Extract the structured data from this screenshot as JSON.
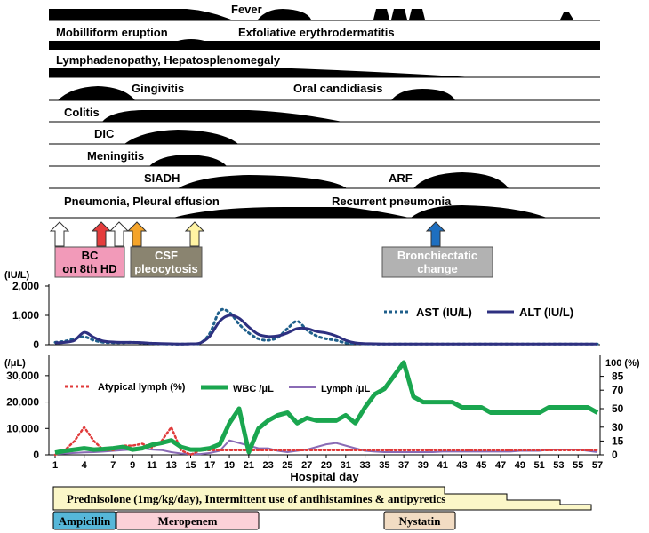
{
  "clinical_course": {
    "tracks": [
      {
        "labels": [
          "Fever"
        ]
      },
      {
        "labels": [
          "Mobilliform eruption",
          "Exfoliative erythrodermatitis"
        ]
      },
      {
        "labels": [
          "Lymphadenopathy, Hepatosplenomegaly"
        ]
      },
      {
        "labels": [
          "Gingivitis",
          "Oral candidiasis"
        ]
      },
      {
        "labels": [
          "Colitis"
        ]
      },
      {
        "labels": [
          "DIC"
        ]
      },
      {
        "labels": [
          "Meningitis"
        ]
      },
      {
        "labels": [
          "SIADH",
          "ARF"
        ]
      },
      {
        "labels": [
          "Pneumonia, Pleural effusion",
          "Recurrent pneumonia"
        ]
      }
    ],
    "events": [
      {
        "label": "BC\non 8th HD",
        "color": "#f29ab9"
      },
      {
        "label": "CSF\npleocytosis",
        "color": "#8a8470"
      },
      {
        "label": "Bronchiectatic\nchange",
        "color": "#b2b2b2"
      }
    ],
    "arrow_colors": [
      "#ffffff",
      "#e53c3c",
      "#ffffff",
      "#f5a42a",
      "#fff3a3",
      "#1e6fc0"
    ]
  },
  "chart_data": [
    {
      "type": "line",
      "ylabel": "(IU/L)",
      "ylim": [
        0,
        2000
      ],
      "yticks": [
        "0",
        "1,000",
        "2,000"
      ],
      "x": [
        1,
        2,
        3,
        4,
        5,
        6,
        7,
        8,
        9,
        10,
        11,
        12,
        13,
        14,
        15,
        16,
        17,
        18,
        19,
        20,
        21,
        22,
        23,
        24,
        25,
        26,
        27,
        28,
        29,
        30,
        31,
        32,
        33,
        34,
        35,
        36,
        37,
        38,
        39,
        40,
        41,
        42,
        43,
        44,
        45,
        46,
        47,
        48,
        49,
        50,
        51,
        52,
        53,
        54,
        55,
        56,
        57
      ],
      "series": [
        {
          "name": "AST (IU/L)",
          "color": "#1f5f8b",
          "style": "dotted",
          "values": [
            80,
            120,
            200,
            270,
            150,
            80,
            70,
            70,
            80,
            60,
            40,
            30,
            20,
            20,
            30,
            60,
            400,
            1150,
            1100,
            700,
            400,
            200,
            150,
            250,
            550,
            800,
            500,
            300,
            200,
            150,
            60,
            40,
            30,
            20,
            20,
            20,
            20,
            20,
            20,
            20,
            20,
            20,
            20,
            20,
            20,
            20,
            20,
            20,
            20,
            20,
            20,
            20,
            20,
            20,
            20,
            20,
            20
          ]
        },
        {
          "name": "ALT (IU/L)",
          "color": "#2e3080",
          "style": "solid",
          "values": [
            60,
            80,
            150,
            420,
            250,
            120,
            90,
            80,
            80,
            70,
            50,
            40,
            30,
            25,
            30,
            60,
            300,
            800,
            1000,
            900,
            600,
            350,
            280,
            300,
            400,
            550,
            550,
            450,
            400,
            300,
            150,
            60,
            40,
            30,
            25,
            25,
            25,
            25,
            25,
            25,
            25,
            25,
            25,
            25,
            25,
            25,
            25,
            25,
            25,
            25,
            25,
            25,
            25,
            25,
            25,
            25,
            25
          ]
        }
      ]
    },
    {
      "type": "line",
      "ylabel": "(/μL)",
      "ylim": [
        0,
        35000
      ],
      "yticks": [
        "0",
        "10,000",
        "20,000",
        "30,000"
      ],
      "y2label": "100 (%)",
      "y2ticks": [
        "0",
        "15",
        "30",
        "50",
        "70",
        "85"
      ],
      "y2lim": [
        0,
        100
      ],
      "xlabel": "Hospital day",
      "xticks": [
        "1",
        "4",
        "7",
        "9",
        "11",
        "13",
        "15",
        "17",
        "19",
        "21",
        "23",
        "25",
        "27",
        "29",
        "31",
        "33",
        "35",
        "37",
        "39",
        "41",
        "43",
        "45",
        "47",
        "49",
        "51",
        "53",
        "55",
        "57"
      ],
      "x": [
        1,
        2,
        3,
        4,
        5,
        6,
        7,
        8,
        9,
        10,
        11,
        12,
        13,
        14,
        15,
        16,
        17,
        18,
        19,
        20,
        21,
        22,
        23,
        24,
        25,
        26,
        27,
        28,
        29,
        30,
        31,
        32,
        33,
        34,
        35,
        36,
        37,
        38,
        39,
        40,
        41,
        42,
        43,
        44,
        45,
        46,
        47,
        48,
        49,
        50,
        51,
        52,
        53,
        54,
        55,
        56,
        57
      ],
      "series": [
        {
          "name": "WBC /μL",
          "color": "#1aa64f",
          "style": "solid",
          "axis": "left",
          "values": [
            800,
            1500,
            2000,
            2500,
            2000,
            2200,
            2500,
            3000,
            2000,
            2500,
            3800,
            4500,
            5500,
            3000,
            2000,
            2000,
            2500,
            4000,
            12000,
            17500,
            1000,
            10000,
            13000,
            15000,
            16000,
            12000,
            14000,
            13000,
            13000,
            13000,
            15000,
            12000,
            18000,
            23000,
            25000,
            30000,
            35000,
            22000,
            20000,
            20000,
            20000,
            20000,
            18000,
            18000,
            18000,
            16000,
            16000,
            16000,
            16000,
            16000,
            16000,
            18000,
            18000,
            18000,
            18000,
            18000,
            16000
          ]
        },
        {
          "name": "Lymph /μL",
          "color": "#8a6bb5",
          "style": "solid",
          "axis": "left",
          "values": [
            300,
            500,
            700,
            900,
            1000,
            1200,
            1500,
            1800,
            2000,
            2500,
            2000,
            1800,
            1000,
            500,
            300,
            300,
            700,
            1500,
            5500,
            4500,
            3500,
            2500,
            2500,
            1500,
            1000,
            1500,
            2000,
            3000,
            4000,
            4500,
            3500,
            2500,
            1500,
            1200,
            1000,
            1000,
            1000,
            1000,
            1000,
            1000,
            1200,
            1200,
            1200,
            1200,
            1200,
            1200,
            1200,
            1200,
            1500,
            1500,
            1500,
            2000,
            2000,
            2000,
            2000,
            1500,
            1000
          ]
        },
        {
          "name": "Atypical lymph (%)",
          "color": "#e03a3a",
          "style": "dotted",
          "axis": "right",
          "values": [
            0,
            5,
            15,
            30,
            15,
            5,
            5,
            10,
            10,
            12,
            8,
            15,
            30,
            5,
            0,
            5,
            5,
            5,
            5,
            5,
            5,
            5,
            5,
            5,
            5,
            5,
            5,
            5,
            5,
            5,
            5,
            5,
            5,
            5,
            5,
            5,
            5,
            5,
            5,
            5,
            5,
            5,
            5,
            5,
            5,
            5,
            5,
            5,
            5,
            5,
            5,
            5,
            5,
            5,
            5,
            5,
            5
          ]
        }
      ]
    }
  ],
  "treatment": {
    "main": "Prednisolone (1mg/kg/day), Intermittent use of antihistamines & antipyretics",
    "drugs": [
      {
        "label": "Ampicillin",
        "color": "#56b7d9"
      },
      {
        "label": "Meropenem",
        "color": "#fbd1d8"
      },
      {
        "label": "Nystatin",
        "color": "#f2dcc3"
      }
    ]
  }
}
